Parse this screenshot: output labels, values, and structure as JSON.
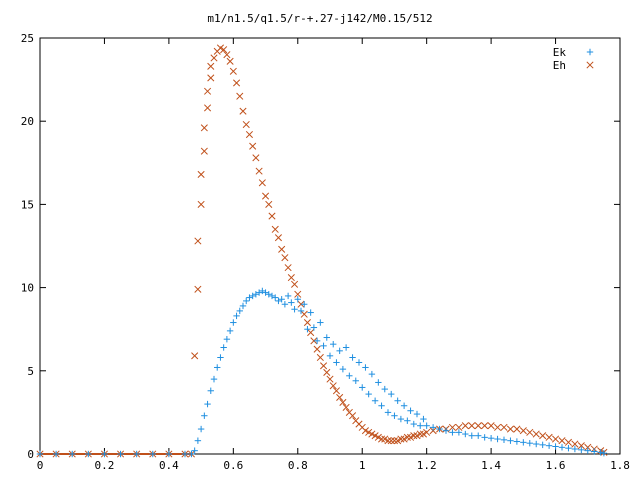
{
  "chart_data": {
    "type": "scatter",
    "title": "m1/n1.5/q1.5/r-+.27-j142/M0.15/512",
    "xlabel": "",
    "ylabel": "",
    "xlim": [
      0,
      1.8
    ],
    "ylim": [
      0,
      25
    ],
    "xticks": [
      "0",
      "0.2",
      "0.4",
      "0.6",
      "0.8",
      "1",
      "1.2",
      "1.4",
      "1.6",
      "1.8"
    ],
    "yticks": [
      "0",
      "5",
      "10",
      "15",
      "20",
      "25"
    ],
    "grid": false,
    "legend_position": "top-right",
    "series": [
      {
        "name": "Ek",
        "marker": "plus",
        "color": "#1f8fe0",
        "points": [
          [
            0.0,
            0
          ],
          [
            0.05,
            0
          ],
          [
            0.1,
            0
          ],
          [
            0.15,
            0
          ],
          [
            0.2,
            0
          ],
          [
            0.25,
            0
          ],
          [
            0.3,
            0
          ],
          [
            0.35,
            0
          ],
          [
            0.4,
            0
          ],
          [
            0.45,
            0
          ],
          [
            0.47,
            0
          ],
          [
            0.48,
            0.2
          ],
          [
            0.49,
            0.8
          ],
          [
            0.5,
            1.5
          ],
          [
            0.51,
            2.3
          ],
          [
            0.52,
            3.0
          ],
          [
            0.53,
            3.8
          ],
          [
            0.54,
            4.5
          ],
          [
            0.55,
            5.2
          ],
          [
            0.56,
            5.8
          ],
          [
            0.57,
            6.4
          ],
          [
            0.58,
            6.9
          ],
          [
            0.59,
            7.4
          ],
          [
            0.6,
            7.9
          ],
          [
            0.61,
            8.3
          ],
          [
            0.62,
            8.6
          ],
          [
            0.63,
            8.9
          ],
          [
            0.64,
            9.2
          ],
          [
            0.65,
            9.4
          ],
          [
            0.66,
            9.5
          ],
          [
            0.67,
            9.6
          ],
          [
            0.68,
            9.7
          ],
          [
            0.69,
            9.8
          ],
          [
            0.7,
            9.7
          ],
          [
            0.71,
            9.6
          ],
          [
            0.72,
            9.5
          ],
          [
            0.73,
            9.4
          ],
          [
            0.74,
            9.2
          ],
          [
            0.75,
            9.3
          ],
          [
            0.76,
            9.0
          ],
          [
            0.77,
            9.5
          ],
          [
            0.78,
            9.1
          ],
          [
            0.79,
            8.7
          ],
          [
            0.8,
            9.3
          ],
          [
            0.81,
            8.6
          ],
          [
            0.82,
            9.0
          ],
          [
            0.83,
            7.5
          ],
          [
            0.84,
            8.5
          ],
          [
            0.85,
            7.6
          ],
          [
            0.86,
            6.8
          ],
          [
            0.87,
            7.9
          ],
          [
            0.88,
            6.5
          ],
          [
            0.89,
            7.0
          ],
          [
            0.9,
            5.9
          ],
          [
            0.91,
            6.6
          ],
          [
            0.92,
            5.5
          ],
          [
            0.93,
            6.2
          ],
          [
            0.94,
            5.1
          ],
          [
            0.95,
            6.4
          ],
          [
            0.96,
            4.7
          ],
          [
            0.97,
            5.8
          ],
          [
            0.98,
            4.4
          ],
          [
            0.99,
            5.5
          ],
          [
            1.0,
            4.0
          ],
          [
            1.01,
            5.2
          ],
          [
            1.02,
            3.6
          ],
          [
            1.03,
            4.8
          ],
          [
            1.04,
            3.2
          ],
          [
            1.05,
            4.3
          ],
          [
            1.06,
            2.9
          ],
          [
            1.07,
            3.9
          ],
          [
            1.08,
            2.5
          ],
          [
            1.09,
            3.6
          ],
          [
            1.1,
            2.3
          ],
          [
            1.11,
            3.2
          ],
          [
            1.12,
            2.1
          ],
          [
            1.13,
            2.9
          ],
          [
            1.14,
            2.0
          ],
          [
            1.15,
            2.6
          ],
          [
            1.16,
            1.8
          ],
          [
            1.17,
            2.4
          ],
          [
            1.18,
            1.7
          ],
          [
            1.19,
            2.1
          ],
          [
            1.2,
            1.7
          ],
          [
            1.22,
            1.6
          ],
          [
            1.24,
            1.5
          ],
          [
            1.26,
            1.4
          ],
          [
            1.28,
            1.3
          ],
          [
            1.3,
            1.3
          ],
          [
            1.32,
            1.2
          ],
          [
            1.34,
            1.1
          ],
          [
            1.36,
            1.1
          ],
          [
            1.38,
            1.0
          ],
          [
            1.4,
            0.95
          ],
          [
            1.42,
            0.9
          ],
          [
            1.44,
            0.85
          ],
          [
            1.46,
            0.8
          ],
          [
            1.48,
            0.75
          ],
          [
            1.5,
            0.7
          ],
          [
            1.52,
            0.65
          ],
          [
            1.54,
            0.6
          ],
          [
            1.56,
            0.55
          ],
          [
            1.58,
            0.5
          ],
          [
            1.6,
            0.45
          ],
          [
            1.62,
            0.4
          ],
          [
            1.64,
            0.35
          ],
          [
            1.66,
            0.3
          ],
          [
            1.68,
            0.25
          ],
          [
            1.7,
            0.2
          ],
          [
            1.72,
            0.15
          ],
          [
            1.74,
            0.1
          ],
          [
            1.75,
            0.05
          ]
        ]
      },
      {
        "name": "Eh",
        "marker": "cross",
        "color": "#c0501a",
        "points": [
          [
            0.0,
            0
          ],
          [
            0.05,
            0
          ],
          [
            0.1,
            0
          ],
          [
            0.15,
            0
          ],
          [
            0.2,
            0
          ],
          [
            0.25,
            0
          ],
          [
            0.3,
            0
          ],
          [
            0.35,
            0
          ],
          [
            0.4,
            0
          ],
          [
            0.45,
            0
          ],
          [
            0.47,
            0
          ],
          [
            0.48,
            5.9
          ],
          [
            0.49,
            9.9
          ],
          [
            0.49,
            12.8
          ],
          [
            0.5,
            15.0
          ],
          [
            0.5,
            16.8
          ],
          [
            0.51,
            18.2
          ],
          [
            0.51,
            19.6
          ],
          [
            0.52,
            20.8
          ],
          [
            0.52,
            21.8
          ],
          [
            0.53,
            22.6
          ],
          [
            0.53,
            23.3
          ],
          [
            0.54,
            23.8
          ],
          [
            0.55,
            24.2
          ],
          [
            0.56,
            24.4
          ],
          [
            0.57,
            24.3
          ],
          [
            0.58,
            24.0
          ],
          [
            0.59,
            23.6
          ],
          [
            0.6,
            23.0
          ],
          [
            0.61,
            22.3
          ],
          [
            0.62,
            21.5
          ],
          [
            0.63,
            20.6
          ],
          [
            0.64,
            19.8
          ],
          [
            0.65,
            19.2
          ],
          [
            0.66,
            18.5
          ],
          [
            0.67,
            17.8
          ],
          [
            0.68,
            17.0
          ],
          [
            0.69,
            16.3
          ],
          [
            0.7,
            15.5
          ],
          [
            0.71,
            15.0
          ],
          [
            0.72,
            14.3
          ],
          [
            0.73,
            13.5
          ],
          [
            0.74,
            13.0
          ],
          [
            0.75,
            12.3
          ],
          [
            0.76,
            11.8
          ],
          [
            0.77,
            11.2
          ],
          [
            0.78,
            10.6
          ],
          [
            0.79,
            10.2
          ],
          [
            0.8,
            9.6
          ],
          [
            0.81,
            9.0
          ],
          [
            0.82,
            8.4
          ],
          [
            0.83,
            7.9
          ],
          [
            0.84,
            7.3
          ],
          [
            0.85,
            6.8
          ],
          [
            0.86,
            6.3
          ],
          [
            0.87,
            5.8
          ],
          [
            0.88,
            5.3
          ],
          [
            0.89,
            4.9
          ],
          [
            0.9,
            4.5
          ],
          [
            0.91,
            4.1
          ],
          [
            0.92,
            3.8
          ],
          [
            0.93,
            3.4
          ],
          [
            0.94,
            3.1
          ],
          [
            0.95,
            2.8
          ],
          [
            0.96,
            2.5
          ],
          [
            0.97,
            2.3
          ],
          [
            0.98,
            2.0
          ],
          [
            0.99,
            1.8
          ],
          [
            1.0,
            1.6
          ],
          [
            1.01,
            1.4
          ],
          [
            1.02,
            1.3
          ],
          [
            1.03,
            1.2
          ],
          [
            1.04,
            1.1
          ],
          [
            1.05,
            1.0
          ],
          [
            1.06,
            0.9
          ],
          [
            1.07,
            0.9
          ],
          [
            1.08,
            0.8
          ],
          [
            1.09,
            0.8
          ],
          [
            1.1,
            0.8
          ],
          [
            1.11,
            0.8
          ],
          [
            1.12,
            0.9
          ],
          [
            1.13,
            0.9
          ],
          [
            1.14,
            1.0
          ],
          [
            1.15,
            1.0
          ],
          [
            1.16,
            1.1
          ],
          [
            1.17,
            1.1
          ],
          [
            1.18,
            1.2
          ],
          [
            1.19,
            1.2
          ],
          [
            1.2,
            1.3
          ],
          [
            1.22,
            1.4
          ],
          [
            1.24,
            1.5
          ],
          [
            1.26,
            1.5
          ],
          [
            1.28,
            1.6
          ],
          [
            1.3,
            1.6
          ],
          [
            1.32,
            1.7
          ],
          [
            1.34,
            1.7
          ],
          [
            1.36,
            1.7
          ],
          [
            1.38,
            1.7
          ],
          [
            1.4,
            1.7
          ],
          [
            1.42,
            1.6
          ],
          [
            1.44,
            1.6
          ],
          [
            1.46,
            1.5
          ],
          [
            1.48,
            1.5
          ],
          [
            1.5,
            1.4
          ],
          [
            1.52,
            1.3
          ],
          [
            1.54,
            1.2
          ],
          [
            1.56,
            1.1
          ],
          [
            1.58,
            1.0
          ],
          [
            1.6,
            0.9
          ],
          [
            1.62,
            0.8
          ],
          [
            1.64,
            0.7
          ],
          [
            1.66,
            0.6
          ],
          [
            1.68,
            0.5
          ],
          [
            1.7,
            0.4
          ],
          [
            1.72,
            0.3
          ],
          [
            1.74,
            0.2
          ],
          [
            1.75,
            0.1
          ]
        ]
      }
    ]
  }
}
